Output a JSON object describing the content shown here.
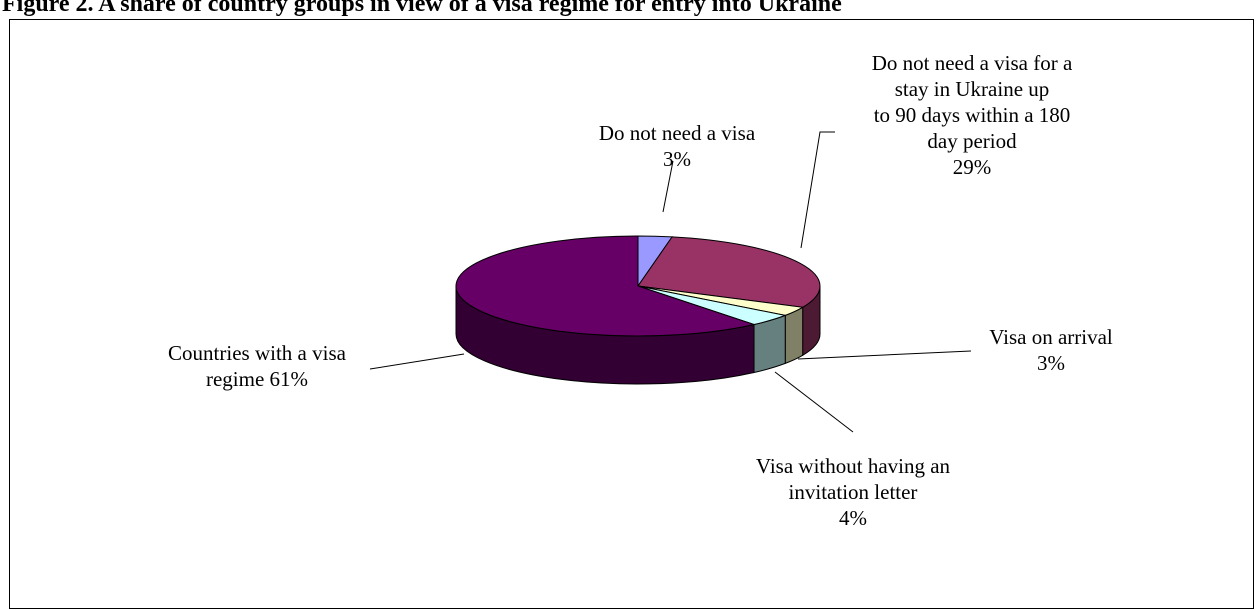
{
  "title": "Figure 2. A share of country groups in view of a visa regime for entry into Ukraine",
  "chart_data": {
    "type": "pie",
    "three_d": true,
    "slices": [
      {
        "name": "Do not need a visa",
        "value": 3,
        "color": "#9999ff",
        "label_lines": [
          "Do not need a visa",
          "3%"
        ]
      },
      {
        "name": "Do not need a visa for a stay in Ukraine up to 90 days within a 180 day period",
        "value": 29,
        "color": "#993366",
        "label_lines": [
          "Do not need a visa for a",
          "stay in Ukraine up",
          "to 90 days within a 180",
          "day period",
          "29%"
        ]
      },
      {
        "name": "Visa on arrival",
        "value": 3,
        "color": "#ffffcc",
        "label_lines": [
          "Visa on arrival",
          "3%"
        ]
      },
      {
        "name": "Visa without having an invitation letter",
        "value": 4,
        "color": "#ccffff",
        "label_lines": [
          "Visa without having an",
          "invitation letter",
          "4%"
        ]
      },
      {
        "name": "Countries with a visa regime",
        "value": 61,
        "color": "#660066",
        "label_lines": [
          "Countries with a visa",
          "regime 61%"
        ]
      }
    ]
  }
}
